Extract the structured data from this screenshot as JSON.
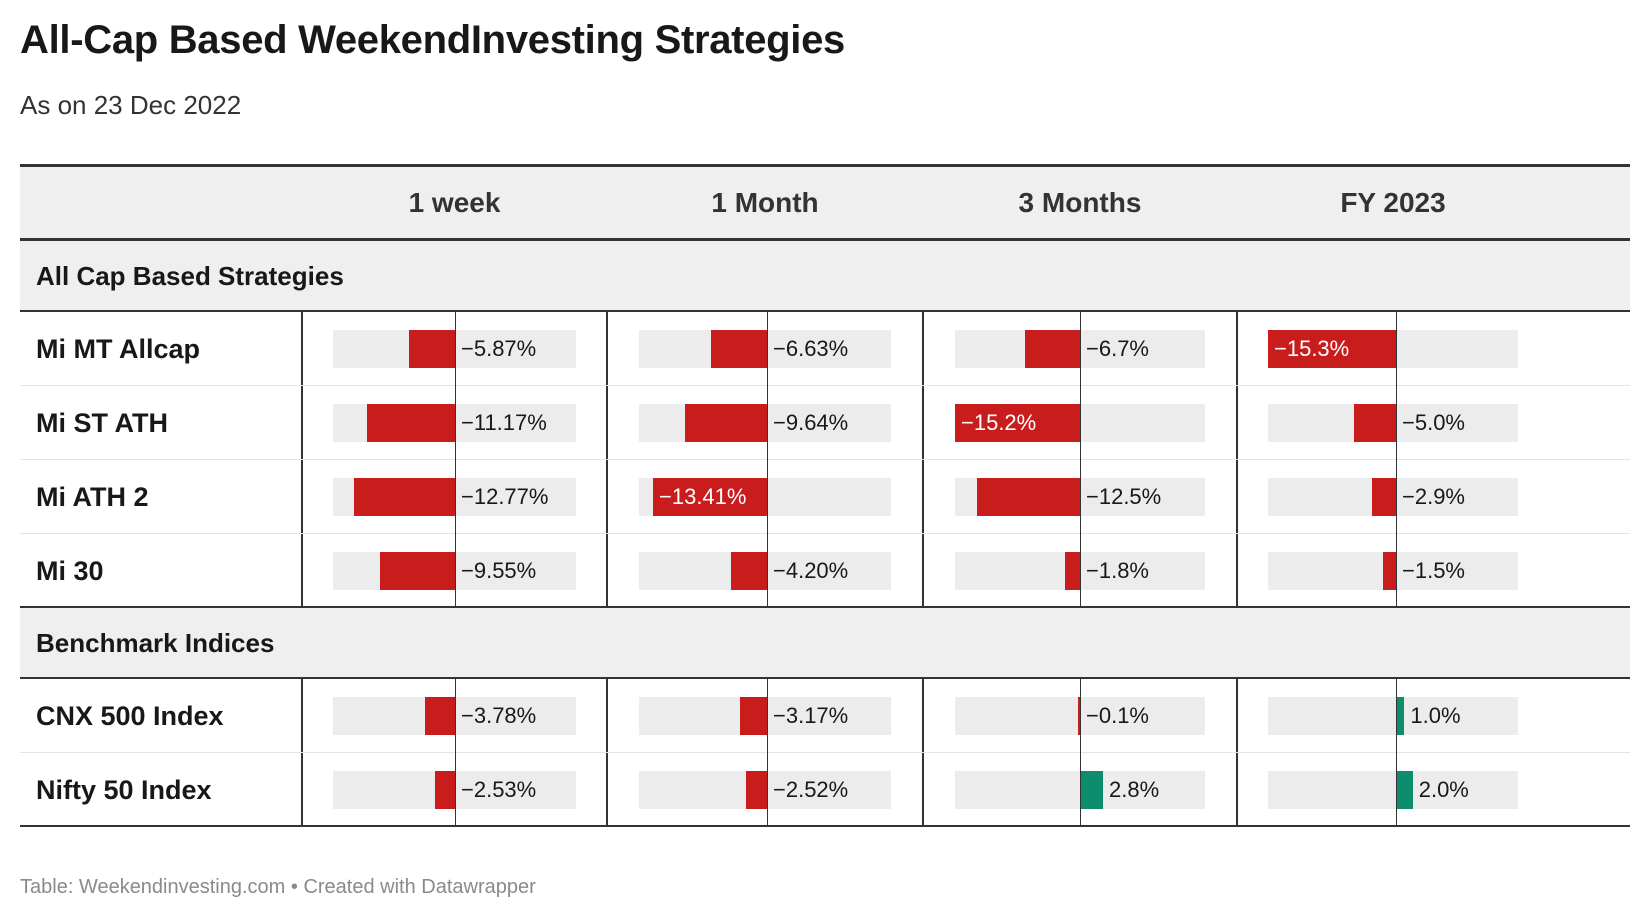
{
  "title": "All-Cap Based WeekendInvesting Strategies",
  "subtitle": "As on 23 Dec 2022",
  "footer": "Table: Weekendinvesting.com • Created with Datawrapper",
  "colors": {
    "negative": "#c91d1d",
    "positive": "#0e8c6e",
    "track": "#ececec",
    "header_bg": "#efefef"
  },
  "chart_data": {
    "type": "table",
    "columns": [
      "1 week",
      "1 Month",
      "3 Months",
      "FY 2023"
    ],
    "groups": [
      {
        "name": "All Cap Based Strategies",
        "rows": [
          {
            "name": "Mi MT Allcap",
            "values": [
              -5.87,
              -6.63,
              -6.7,
              -15.3
            ],
            "labels": [
              "−5.87%",
              "−6.63%",
              "−6.7%",
              "−15.3%"
            ]
          },
          {
            "name": "Mi ST ATH",
            "values": [
              -11.17,
              -9.64,
              -15.2,
              -5.0
            ],
            "labels": [
              "−11.17%",
              "−9.64%",
              "−15.2%",
              "−5.0%"
            ]
          },
          {
            "name": "Mi ATH 2",
            "values": [
              -12.77,
              -13.41,
              -12.5,
              -2.9
            ],
            "labels": [
              "−12.77%",
              "−13.41%",
              "−12.5%",
              "−2.9%"
            ]
          },
          {
            "name": "Mi 30",
            "values": [
              -9.55,
              -4.2,
              -1.8,
              -1.5
            ],
            "labels": [
              "−9.55%",
              "−4.20%",
              "−1.8%",
              "−1.5%"
            ]
          }
        ]
      },
      {
        "name": "Benchmark Indices",
        "rows": [
          {
            "name": "CNX 500 Index",
            "values": [
              -3.78,
              -3.17,
              -0.1,
              1.0
            ],
            "labels": [
              "−3.78%",
              "−3.17%",
              "−0.1%",
              "1.0%"
            ]
          },
          {
            "name": "Nifty 50 Index",
            "values": [
              -2.53,
              -2.52,
              2.8,
              2.0
            ],
            "labels": [
              "−2.53%",
              "−2.52%",
              "2.8%",
              "2.0%"
            ]
          }
        ]
      }
    ],
    "column_ranges": [
      [
        -15.5,
        15.0
      ],
      [
        -15.0,
        15.0
      ],
      [
        -15.5,
        15.5
      ],
      [
        -16.0,
        15.0
      ]
    ],
    "inside_label_threshold": -13.0
  }
}
